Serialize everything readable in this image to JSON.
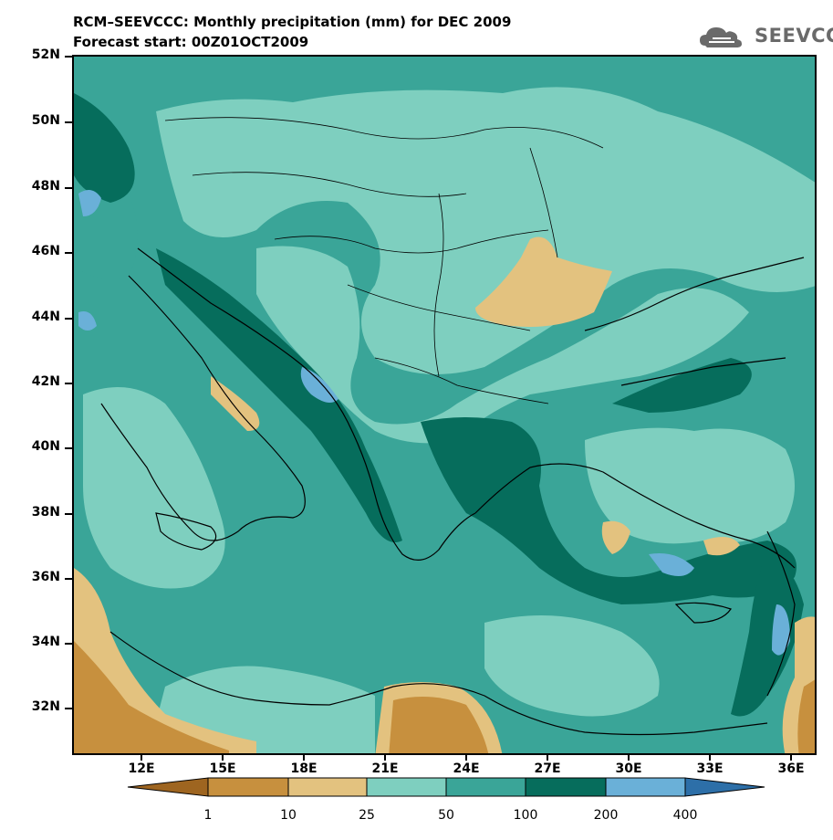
{
  "title": {
    "line1": "RCM–SEEVCCC: Monthly precipitation (mm) for DEC 2009",
    "line2": "Forecast start: 00Z01OCT2009"
  },
  "logo": {
    "text": "SEEVCCC",
    "icon": "cloud-logo-icon"
  },
  "map": {
    "latitude_labels": [
      "52N",
      "50N",
      "48N",
      "46N",
      "44N",
      "42N",
      "40N",
      "38N",
      "36N",
      "34N",
      "32N"
    ],
    "longitude_labels": [
      "12E",
      "15E",
      "18E",
      "21E",
      "24E",
      "27E",
      "30E",
      "33E",
      "36E"
    ]
  },
  "colorbar": {
    "thresholds": [
      "1",
      "10",
      "25",
      "50",
      "100",
      "200",
      "400"
    ],
    "colors": [
      "#9e6520",
      "#c7903e",
      "#e3c27f",
      "#7ecfbf",
      "#3aa598",
      "#066d5c",
      "#6ab0d8",
      "#2d6fa8"
    ]
  },
  "colors": {
    "coastline": "#000000",
    "low_precip": "#e3c27f",
    "mid_precip": "#7ecfbf",
    "high_precip": "#066d5c"
  }
}
